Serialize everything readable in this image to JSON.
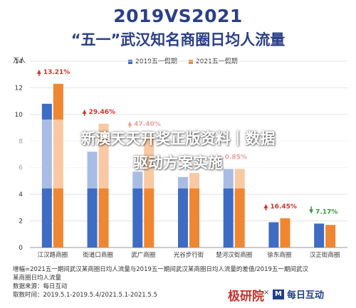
{
  "header": {
    "title_line1": "2019VS2021",
    "title_line2": "“五一”武汉知名商圈日均人流量"
  },
  "overlay": {
    "line1": "新澳天天开奖正版资料｜数据",
    "line2": "驱动方案实施"
  },
  "chart_data": {
    "type": "bar",
    "ylabel": "万人",
    "ylim": [
      0,
      14
    ],
    "yticks": [
      0,
      2,
      4,
      6,
      8,
      10,
      12,
      14
    ],
    "grid": true,
    "legend_position": "top",
    "categories": [
      "江汉路商圈",
      "街道口商圈",
      "武广商圈",
      "光谷步行街",
      "楚河汉街商圈",
      "徐东商圈",
      "汉正街商圈"
    ],
    "series": [
      {
        "name": "2019五一假期",
        "color": "#3e6cc4",
        "values": [
          10.8,
          7.2,
          5.7,
          5.3,
          5.9,
          1.9,
          1.8
        ]
      },
      {
        "name": "2021五一假期",
        "color": "#ef8732",
        "values": [
          12.3,
          9.3,
          8.4,
          5.6,
          5.9,
          2.2,
          1.7
        ]
      }
    ],
    "growth_labels": [
      {
        "text": "13.21%",
        "direction": "up"
      },
      {
        "text": "29.46%",
        "direction": "up"
      },
      {
        "text": "47.40%",
        "direction": "up"
      },
      {
        "text": "",
        "direction": "up"
      },
      {
        "text": "0.85%",
        "direction": "up"
      },
      {
        "text": "16.45%",
        "direction": "up"
      },
      {
        "text": "7.17%",
        "direction": "down"
      }
    ]
  },
  "footer": {
    "note_line1": "增幅=2021五一期间武汉某商圈日均人流量与2019五一期间武汉某商圈日均人流量的差值/2019五一期间武汉",
    "note_line2": "某商圈日均人流量",
    "source": "数据来源：每日互动",
    "period": "取数时间：2019.5.1-2019.5.4/2021.5.1-2021.5.5",
    "logo_a": "极研院",
    "logo_sep": "×",
    "logo_b_mark": "M",
    "logo_b_name": "每日互动"
  },
  "colors": {
    "up": "#d6312b",
    "down": "#3a9a3a",
    "title": "#2a3f86"
  }
}
